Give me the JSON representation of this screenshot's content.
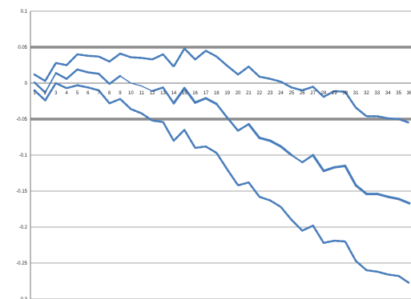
{
  "chart_data": {
    "type": "line",
    "title": "",
    "xlabel": "",
    "ylabel": "",
    "ylim": [
      -0.3,
      0.1
    ],
    "yticks": [
      0.1,
      0.05,
      0,
      -0.05,
      -0.1,
      -0.15,
      -0.2,
      -0.25,
      -0.3
    ],
    "ytick_labels": [
      "0.1",
      "0.05",
      "0",
      "-0.05",
      "-0.1",
      "-0.15",
      "-0.2",
      "-0.25",
      "-0.3"
    ],
    "thick_reference_lines": [
      0.05,
      -0.05
    ],
    "grid": true,
    "legend": "none",
    "categories": [
      "1",
      "2",
      "3",
      "4",
      "5",
      "6",
      "7",
      "8",
      "9",
      "10",
      "11",
      "12",
      "13",
      "14",
      "15",
      "16",
      "17",
      "18",
      "19",
      "20",
      "21",
      "22",
      "23",
      "24",
      "25",
      "26",
      "27",
      "28",
      "29",
      "30",
      "31",
      "32",
      "33",
      "34",
      "35",
      "36"
    ],
    "series": [
      {
        "color": "#4a7ebb",
        "style": "solid-varying",
        "values": [
          0.001,
          -0.013,
          0.014,
          0.006,
          0.019,
          0.015,
          0.013,
          -0.001,
          0.01,
          0.0,
          -0.004,
          -0.011,
          -0.006,
          -0.028,
          -0.007,
          -0.027,
          -0.021,
          -0.029,
          -0.048,
          -0.066,
          -0.057,
          -0.076,
          -0.08,
          -0.088,
          -0.1,
          -0.11,
          -0.1,
          -0.122,
          -0.117,
          -0.115,
          -0.142,
          -0.154,
          -0.154,
          -0.158,
          -0.161,
          -0.167
        ]
      },
      {
        "color": "#4a7ebb",
        "style": "dashed",
        "values": [
          0.012,
          0.003,
          0.028,
          0.025,
          0.04,
          0.038,
          0.037,
          0.03,
          0.041,
          0.036,
          0.035,
          0.033,
          0.04,
          0.023,
          0.048,
          0.033,
          0.045,
          0.037,
          0.024,
          0.012,
          0.023,
          0.009,
          0.006,
          0.002,
          -0.006,
          -0.01,
          -0.005,
          -0.019,
          -0.011,
          -0.012,
          -0.034,
          -0.046,
          -0.046,
          -0.049,
          -0.05,
          -0.055
        ]
      },
      {
        "color": "#4a7ebb",
        "style": "dashed",
        "values": [
          -0.01,
          -0.024,
          0.0,
          -0.007,
          -0.003,
          -0.006,
          -0.01,
          -0.028,
          -0.022,
          -0.036,
          -0.042,
          -0.052,
          -0.054,
          -0.08,
          -0.065,
          -0.09,
          -0.088,
          -0.097,
          -0.12,
          -0.142,
          -0.138,
          -0.158,
          -0.163,
          -0.172,
          -0.19,
          -0.205,
          -0.198,
          -0.222,
          -0.219,
          -0.22,
          -0.247,
          -0.26,
          -0.262,
          -0.266,
          -0.268,
          -0.278
        ]
      }
    ]
  }
}
